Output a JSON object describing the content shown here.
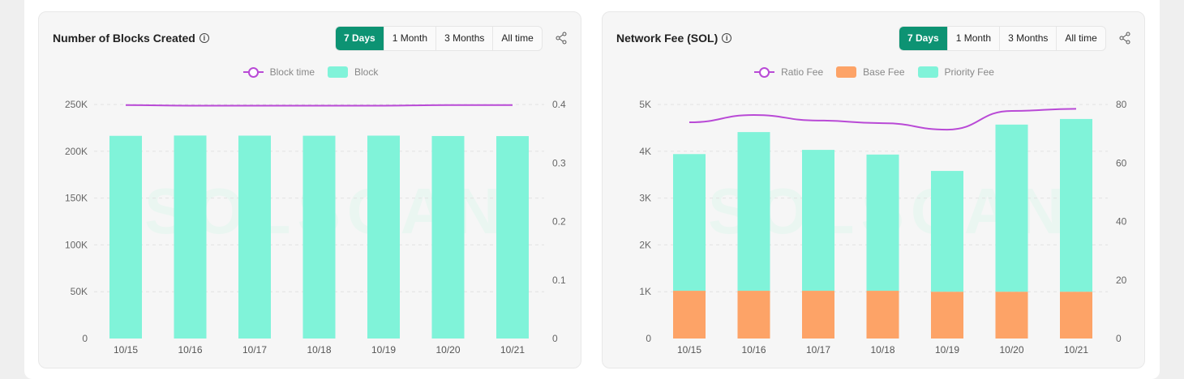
{
  "charts": [
    {
      "title": "Number of Blocks Created",
      "ranges": [
        "7 Days",
        "1 Month",
        "3 Months",
        "All time"
      ],
      "active_range": "7 Days",
      "legend": [
        "Block time",
        "Block"
      ]
    },
    {
      "title": "Network Fee (SOL)",
      "ranges": [
        "7 Days",
        "1 Month",
        "3 Months",
        "All time"
      ],
      "active_range": "7 Days",
      "legend": [
        "Ratio Fee",
        "Base Fee",
        "Priority Fee"
      ]
    }
  ],
  "chart_data": [
    {
      "type": "bar",
      "title": "Number of Blocks Created",
      "categories": [
        "10/15",
        "10/16",
        "10/17",
        "10/18",
        "10/19",
        "10/20",
        "10/21"
      ],
      "y_left": {
        "ticks": [
          "0",
          "50K",
          "100K",
          "150K",
          "200K",
          "250K"
        ],
        "range": [
          0,
          250000
        ]
      },
      "y_right": {
        "ticks": [
          "0",
          "0.1",
          "0.2",
          "0.3",
          "0.4"
        ],
        "range": [
          0,
          0.4
        ]
      },
      "series": [
        {
          "name": "Block",
          "type": "bar",
          "axis": "left",
          "color": "#80f3d9",
          "values": [
            216500,
            216800,
            216700,
            216600,
            216700,
            216300,
            216200
          ]
        },
        {
          "name": "Block time",
          "type": "line",
          "axis": "right",
          "color": "#b94ad6",
          "values": [
            0.399,
            0.398,
            0.398,
            0.398,
            0.398,
            0.399,
            0.399
          ]
        }
      ],
      "grid": true,
      "legend": "top"
    },
    {
      "type": "bar",
      "stacked": true,
      "title": "Network Fee (SOL)",
      "categories": [
        "10/15",
        "10/16",
        "10/17",
        "10/18",
        "10/19",
        "10/20",
        "10/21"
      ],
      "y_left": {
        "ticks": [
          "0",
          "1K",
          "2K",
          "3K",
          "4K",
          "5K"
        ],
        "range": [
          0,
          5000
        ]
      },
      "y_right": {
        "ticks": [
          "0",
          "20",
          "40",
          "60",
          "80"
        ],
        "range": [
          0,
          80
        ]
      },
      "series": [
        {
          "name": "Base Fee",
          "type": "bar",
          "axis": "left",
          "color": "#fda367",
          "values": [
            1020,
            1020,
            1020,
            1020,
            1000,
            1000,
            1000
          ]
        },
        {
          "name": "Priority Fee",
          "type": "bar",
          "axis": "left",
          "color": "#80f3d9",
          "values": [
            2920,
            3390,
            3010,
            2910,
            2580,
            3570,
            3690
          ]
        },
        {
          "name": "Ratio Fee",
          "type": "line",
          "axis": "right",
          "color": "#b94ad6",
          "values": [
            73.9,
            76.4,
            74.5,
            73.6,
            71.4,
            77.8,
            78.5
          ]
        }
      ],
      "grid": true,
      "legend": "top"
    }
  ]
}
